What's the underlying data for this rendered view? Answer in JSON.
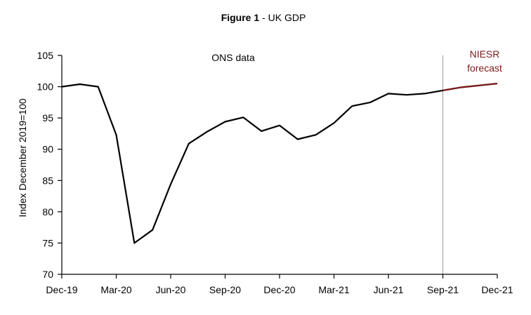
{
  "chart_data": {
    "type": "line",
    "title_prefix": "Figure 1",
    "title_sep": " - ",
    "title_text": "UK GDP",
    "ylabel": "Index December 2019=100",
    "xlabel": "",
    "ylim": [
      70,
      105
    ],
    "yticks": [
      "70",
      "75",
      "80",
      "85",
      "90",
      "95",
      "100",
      "105"
    ],
    "xticks": [
      "Dec-19",
      "Mar-20",
      "Jun-20",
      "Sep-20",
      "Dec-20",
      "Mar-21",
      "Jun-21",
      "Sep-21",
      "Dec-21"
    ],
    "ons_label": "ONS data",
    "forecast_label_line1": "NIESR",
    "forecast_label_line2": "forecast",
    "divider_index": 21,
    "series": [
      {
        "name": "ONS data",
        "color": "#000000",
        "x": [
          0,
          1,
          2,
          3,
          4,
          5,
          6,
          7,
          8,
          9,
          10,
          11,
          12,
          13,
          14,
          15,
          16,
          17,
          18,
          19,
          20,
          21
        ],
        "values": [
          100.0,
          100.4,
          100.0,
          92.3,
          75.0,
          77.1,
          84.4,
          90.9,
          92.8,
          94.4,
          95.1,
          92.9,
          93.8,
          91.6,
          92.3,
          94.2,
          96.9,
          97.5,
          98.9,
          98.7,
          98.9,
          99.4
        ]
      },
      {
        "name": "NIESR forecast",
        "color": "#7a1a1a",
        "x": [
          21,
          22,
          23,
          24
        ],
        "values": [
          99.4,
          99.9,
          100.2,
          100.5
        ]
      }
    ],
    "colors": {
      "divider": "#a6a6a6",
      "forecast_text": "#7a1a1a",
      "axis": "#000000"
    }
  }
}
